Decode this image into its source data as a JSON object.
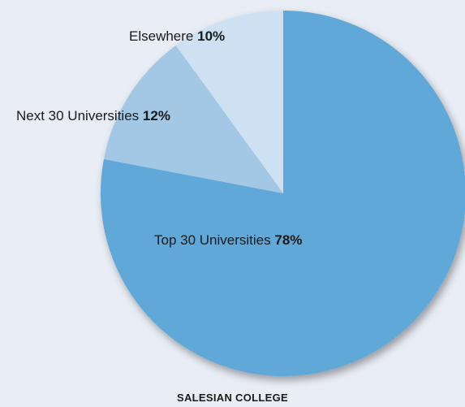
{
  "chart_data": {
    "type": "pie",
    "title": "",
    "categories": [
      "Top 30 Universities",
      "Next 30 Universities",
      "Elsewhere"
    ],
    "values": [
      78,
      12,
      10
    ],
    "value_labels": [
      "78%",
      "12%",
      "10%"
    ],
    "colors": [
      "#5ea8d8",
      "#a2c8e6",
      "#cde1f2"
    ],
    "start_angle_deg": 0,
    "direction": "clockwise",
    "shadow": true,
    "legend": "none (labels placed on slices)"
  },
  "footer": {
    "caption": "SALESIAN COLLEGE"
  },
  "background_color": "#e9edf5"
}
